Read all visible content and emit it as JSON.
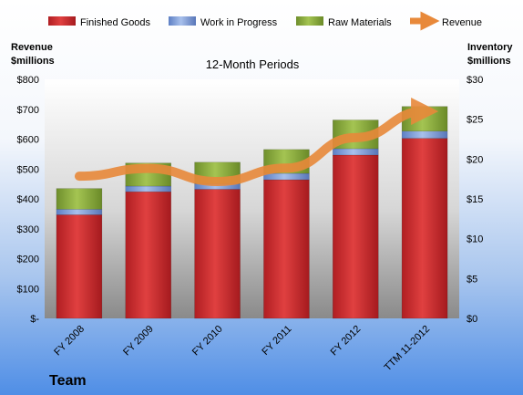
{
  "chart_data": {
    "type": "bar",
    "subtitle": "12-Month Periods",
    "footer": "Team",
    "categories": [
      "FY 2008",
      "FY 2009",
      "FY 2010",
      "FY 2011",
      "FY 2012",
      "TTM 11-2012"
    ],
    "left_axis": {
      "title_lines": [
        "Revenue",
        "$millions"
      ],
      "range": [
        0,
        800
      ],
      "ticks": [
        0,
        100,
        200,
        300,
        400,
        500,
        600,
        700,
        800
      ],
      "tick_labels": [
        "$-",
        "$100",
        "$200",
        "$300",
        "$400",
        "$500",
        "$600",
        "$700",
        "$800"
      ]
    },
    "right_axis": {
      "title_lines": [
        "Inventory",
        "$millions"
      ],
      "range": [
        0,
        30
      ],
      "ticks": [
        0,
        5,
        10,
        15,
        20,
        25,
        30
      ],
      "tick_labels": [
        "$0",
        "$5",
        "$10",
        "$15",
        "$20",
        "$25",
        "$30"
      ]
    },
    "stacked_series": [
      {
        "name": "Finished Goods",
        "color": "#c0282c",
        "values": [
          13.0,
          15.9,
          16.2,
          17.4,
          20.5,
          22.6
        ]
      },
      {
        "name": "Work in Progress",
        "color": "#6f8fd0",
        "values": [
          0.7,
          0.7,
          0.7,
          0.8,
          0.8,
          0.9
        ]
      },
      {
        "name": "Raw Materials",
        "color": "#8aab3c",
        "values": [
          2.6,
          2.9,
          2.7,
          3.0,
          3.6,
          3.1
        ]
      }
    ],
    "line_series": {
      "name": "Revenue",
      "color": "#e8893a",
      "axis": "left",
      "values": [
        476,
        502,
        458,
        503,
        605,
        693
      ]
    },
    "legend_position": "top",
    "grid": false
  }
}
